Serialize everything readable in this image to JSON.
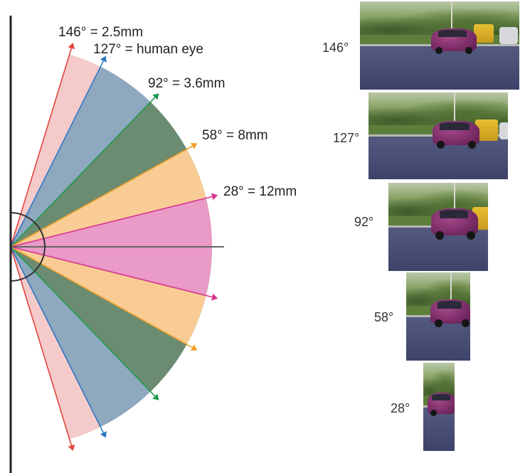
{
  "fov_labels": {
    "a146": "146° = 2.5mm",
    "a127": "127° = human eye",
    "a92": "92° = 3.6mm",
    "a58": "58° = 8mm",
    "a28": "28° = 12mm"
  },
  "photo_labels": {
    "p146": "146°",
    "p127": "127°",
    "p92": "92°",
    "p58": "58°",
    "p28": "28°"
  },
  "colors": {
    "deg146": "#e2453f",
    "deg127": "#2f78c4",
    "deg92": "#1f9a4f",
    "deg58": "#f0a02a",
    "deg28": "#d6338f",
    "wedge146": "#f4caca",
    "wedge127": "#8ea8bf",
    "wedge92": "#6b8c70",
    "wedge58": "#f8cc94",
    "wedge28": "#e99ac6"
  }
}
